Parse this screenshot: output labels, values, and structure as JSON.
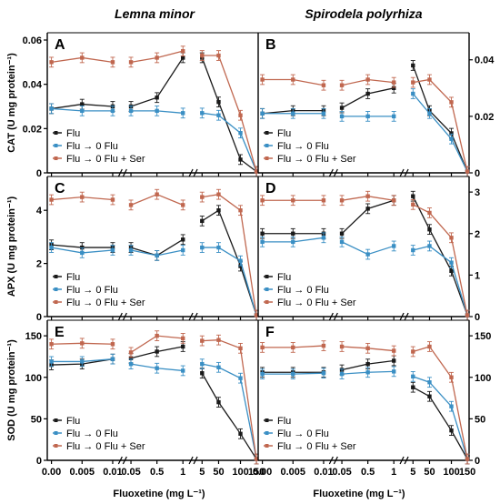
{
  "columns": [
    "Lemna minor",
    "Spirodela polyrhiza"
  ],
  "x_axis": {
    "label": "Fluoxetine (mg L⁻¹)",
    "segments": [
      {
        "ticks": [
          0,
          0.005,
          0.01
        ],
        "tick_labels": [
          "0.00",
          "0.005",
          "0.01"
        ]
      },
      {
        "ticks": [
          0.05,
          0.5,
          1
        ],
        "tick_labels": [
          "0.05",
          "0.5",
          "1"
        ]
      },
      {
        "ticks": [
          5,
          50,
          100,
          150
        ],
        "tick_labels": [
          "5",
          "50",
          "100",
          "150"
        ]
      }
    ]
  },
  "legend": [
    "Flu",
    "Flu → 0 Flu",
    "Flu → 0 Flu + Ser"
  ],
  "colors": {
    "Flu": "#1a1a1a",
    "Flu0": "#3a8fc4",
    "FluSer": "#c0674f",
    "axis": "#000000"
  },
  "chart_data": [
    {
      "panel": "A",
      "type": "line",
      "ylabel": "CAT (U mg protein⁻¹)",
      "ylim": [
        0,
        0.06
      ],
      "yticks": [
        0,
        0.02,
        0.04,
        0.06
      ],
      "ytick_labels": [
        "0",
        "0.02",
        "0.04",
        "0.06"
      ],
      "series": [
        {
          "name": "Flu",
          "segments": [
            [
              0.029,
              0.031,
              0.03
            ],
            [
              0.03,
              0.034,
              0.052
            ],
            [
              0.052,
              0.032,
              0.006
            ]
          ]
        },
        {
          "name": "Flu → 0 Flu",
          "segments": [
            [
              0.029,
              0.028,
              0.028
            ],
            [
              0.028,
              0.028,
              0.027
            ],
            [
              0.027,
              0.026,
              0.018
            ]
          ]
        },
        {
          "name": "Flu → 0 Flu + Ser",
          "segments": [
            [
              0.05,
              0.052,
              0.05
            ],
            [
              0.05,
              0.052,
              0.055
            ],
            [
              0.053,
              0.053,
              0.026
            ]
          ]
        }
      ]
    },
    {
      "panel": "B",
      "type": "line",
      "ylabel": "",
      "ylim": [
        0,
        0.047
      ],
      "yticks": [
        0,
        0.02,
        0.04
      ],
      "ytick_labels": [
        "0",
        "0.02",
        "0.04"
      ],
      "series": [
        {
          "name": "Flu",
          "segments": [
            [
              0.021,
              0.022,
              0.022
            ],
            [
              0.023,
              0.028,
              0.03
            ],
            [
              0.038,
              0.022,
              0.014
            ]
          ]
        },
        {
          "name": "Flu → 0 Flu",
          "segments": [
            [
              0.021,
              0.021,
              0.021
            ],
            [
              0.02,
              0.02,
              0.02
            ],
            [
              0.028,
              0.021,
              0.012
            ]
          ]
        },
        {
          "name": "Flu → 0 Flu + Ser",
          "segments": [
            [
              0.033,
              0.033,
              0.031
            ],
            [
              0.031,
              0.033,
              0.032
            ],
            [
              0.032,
              0.033,
              0.025
            ]
          ]
        }
      ]
    },
    {
      "panel": "C",
      "type": "line",
      "ylabel": "APX (U mg protein⁻¹)",
      "ylim": [
        0,
        5
      ],
      "yticks": [
        0,
        2,
        4
      ],
      "ytick_labels": [
        "0",
        "2",
        "4"
      ],
      "series": [
        {
          "name": "Flu",
          "segments": [
            [
              2.7,
              2.6,
              2.6
            ],
            [
              2.6,
              2.3,
              2.9
            ],
            [
              3.6,
              4.0,
              1.9
            ]
          ]
        },
        {
          "name": "Flu → 0 Flu",
          "segments": [
            [
              2.6,
              2.4,
              2.5
            ],
            [
              2.5,
              2.3,
              2.5
            ],
            [
              2.6,
              2.6,
              2.1
            ]
          ]
        },
        {
          "name": "Flu → 0 Flu + Ser",
          "segments": [
            [
              4.4,
              4.5,
              4.4
            ],
            [
              4.2,
              4.6,
              4.2
            ],
            [
              4.5,
              4.6,
              4.0
            ]
          ]
        }
      ]
    },
    {
      "panel": "D",
      "type": "line",
      "ylabel": "",
      "ylim": [
        0,
        3.2
      ],
      "yticks": [
        0,
        1,
        2,
        3
      ],
      "ytick_labels": [
        "0",
        "1",
        "2",
        "3"
      ],
      "series": [
        {
          "name": "Flu",
          "segments": [
            [
              2.0,
              2.0,
              2.0
            ],
            [
              2.0,
              2.6,
              2.8
            ],
            [
              2.9,
              2.1,
              1.1
            ]
          ]
        },
        {
          "name": "Flu → 0 Flu",
          "segments": [
            [
              1.8,
              1.8,
              1.9
            ],
            [
              1.8,
              1.5,
              1.7
            ],
            [
              1.6,
              1.7,
              1.3
            ]
          ]
        },
        {
          "name": "Flu → 0 Flu + Ser",
          "segments": [
            [
              2.8,
              2.8,
              2.8
            ],
            [
              2.8,
              2.9,
              2.8
            ],
            [
              2.7,
              2.5,
              1.9
            ]
          ]
        }
      ]
    },
    {
      "panel": "E",
      "type": "line",
      "ylabel": "SOD (U mg protein⁻¹)",
      "ylim": [
        0,
        160
      ],
      "yticks": [
        0,
        50,
        100,
        150
      ],
      "ytick_labels": [
        "0",
        "50",
        "100",
        "150"
      ],
      "series": [
        {
          "name": "Flu",
          "segments": [
            [
              115,
              116,
              122
            ],
            [
              123,
              131,
              137
            ],
            [
              105,
              70,
              32
            ]
          ]
        },
        {
          "name": "Flu → 0 Flu",
          "segments": [
            [
              119,
              119,
              122
            ],
            [
              116,
              111,
              108
            ],
            [
              116,
              112,
              99
            ]
          ]
        },
        {
          "name": "Flu → 0 Flu + Ser",
          "segments": [
            [
              140,
              141,
              140
            ],
            [
              130,
              150,
              147
            ],
            [
              144,
              145,
              135
            ]
          ]
        }
      ]
    },
    {
      "panel": "F",
      "type": "line",
      "ylabel": "",
      "ylim": [
        0,
        160
      ],
      "yticks": [
        0,
        50,
        100,
        150
      ],
      "ytick_labels": [
        "0",
        "50",
        "100",
        "150"
      ],
      "series": [
        {
          "name": "Flu",
          "segments": [
            [
              106,
              106,
              106
            ],
            [
              109,
              116,
              120
            ],
            [
              88,
              77,
              36
            ]
          ]
        },
        {
          "name": "Flu → 0 Flu",
          "segments": [
            [
              104,
              104,
              105
            ],
            [
              104,
              106,
              107
            ],
            [
              101,
              94,
              65
            ]
          ]
        },
        {
          "name": "Flu → 0 Flu + Ser",
          "segments": [
            [
              136,
              136,
              138
            ],
            [
              137,
              135,
              132
            ],
            [
              131,
              137,
              100
            ]
          ]
        }
      ]
    }
  ]
}
